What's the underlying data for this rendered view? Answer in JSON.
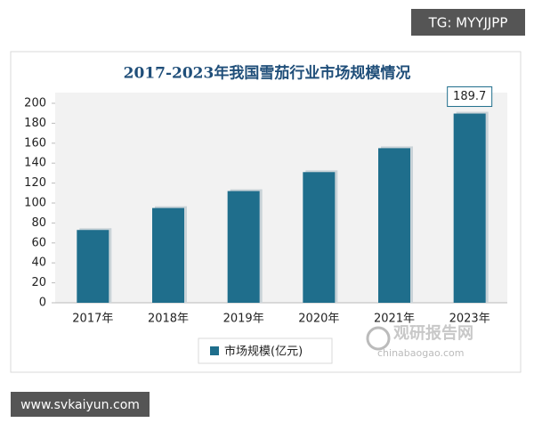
{
  "chart_data": {
    "type": "bar",
    "title": "2017-2023年我国雪茄行业市场规模情况",
    "categories": [
      "2017年",
      "2018年",
      "2019年",
      "2020年",
      "2021年",
      "2023年"
    ],
    "series": [
      {
        "name": "市场规模(亿元)",
        "color": "#1f6e8c",
        "values": [
          73,
          95,
          112,
          131,
          155,
          189.7
        ],
        "value_labels": [
          null,
          null,
          null,
          null,
          null,
          "189.7"
        ]
      }
    ],
    "ylim": [
      0,
      200
    ],
    "yticks": [
      0,
      20,
      40,
      60,
      80,
      100,
      120,
      140,
      160,
      180,
      200
    ],
    "grid": false,
    "legend": "bottom"
  },
  "watermark": "TG: MYYJJPP",
  "footer_text": "www.svkaiyun.com",
  "logo_text": "观研报告网",
  "logo_url": "chinabaogao.com"
}
